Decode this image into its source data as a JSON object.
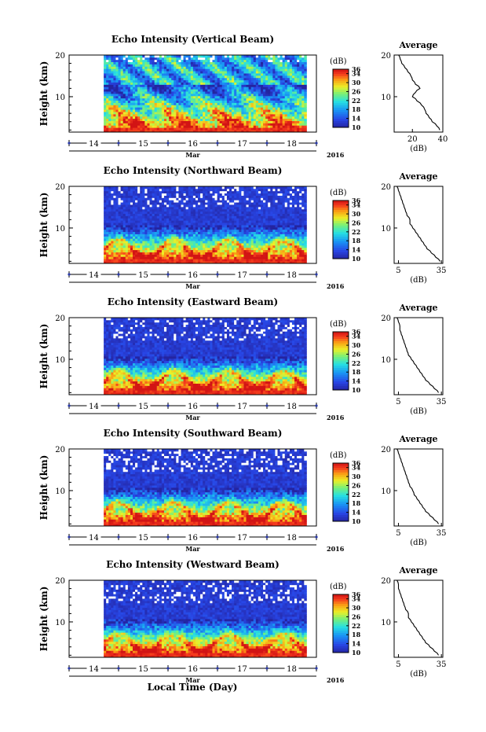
{
  "figure": {
    "x_axis_label": "Local Time (Day)",
    "month_label": "Mar",
    "year_label": "2016"
  },
  "chart_data": [
    {
      "type": "heatmap",
      "title": "Echo Intensity (Vertical Beam)",
      "ylabel": "Height (km)",
      "ylim": [
        1.5,
        20
      ],
      "yticks": [
        10,
        20
      ],
      "xlim": [
        13.5,
        18.5
      ],
      "xticks": [
        "14",
        "15",
        "16",
        "17",
        "18"
      ],
      "data_start_day": 14.2,
      "colorbar": {
        "unit": "(dB)",
        "range": [
          10,
          36
        ],
        "ticks": [
          10,
          14,
          18,
          22,
          26,
          30,
          34,
          36
        ]
      },
      "average_profile": {
        "title": "Average",
        "xlabel": "(dB)",
        "xlim": [
          8,
          40
        ],
        "xticks": [
          20,
          40
        ],
        "ylim": [
          1.5,
          20
        ],
        "yticks": [
          10,
          20
        ],
        "height_km": [
          2,
          3,
          4,
          5,
          6,
          7,
          8,
          9,
          10,
          11,
          12,
          13,
          14,
          15,
          16,
          17,
          18,
          19,
          20
        ],
        "db": [
          38,
          36,
          33,
          31,
          29,
          28,
          26,
          23,
          20,
          22,
          25,
          22,
          20,
          19,
          17,
          15,
          13,
          12,
          11
        ]
      }
    },
    {
      "type": "heatmap",
      "title": "Echo Intensity (Northward Beam)",
      "ylabel": "Height (km)",
      "ylim": [
        1.5,
        20
      ],
      "yticks": [
        10,
        20
      ],
      "xlim": [
        13.5,
        18.5
      ],
      "xticks": [
        "14",
        "15",
        "16",
        "17",
        "18"
      ],
      "data_start_day": 14.2,
      "colorbar": {
        "unit": "(dB)",
        "range": [
          10,
          36
        ],
        "ticks": [
          10,
          14,
          18,
          22,
          26,
          30,
          34,
          36
        ]
      },
      "average_profile": {
        "title": "Average",
        "xlabel": "(dB)",
        "xlim": [
          2,
          36
        ],
        "xticks": [
          5,
          35
        ],
        "ylim": [
          1.5,
          20
        ],
        "yticks": [
          10,
          20
        ],
        "height_km": [
          2,
          3,
          4,
          5,
          6,
          7,
          8,
          9,
          10,
          11,
          12,
          13,
          14,
          15,
          16,
          17,
          18,
          19,
          20
        ],
        "db": [
          34,
          31,
          28,
          25,
          23,
          21,
          19,
          17,
          15,
          13,
          13,
          11,
          10,
          9,
          8,
          7,
          6,
          5,
          4
        ]
      }
    },
    {
      "type": "heatmap",
      "title": "Echo Intensity (Eastward Beam)",
      "ylabel": "Height (km)",
      "ylim": [
        1.5,
        20
      ],
      "yticks": [
        10,
        20
      ],
      "xlim": [
        13.5,
        18.5
      ],
      "xticks": [
        "14",
        "15",
        "16",
        "17",
        "18"
      ],
      "data_start_day": 14.2,
      "colorbar": {
        "unit": "(dB)",
        "range": [
          10,
          36
        ],
        "ticks": [
          10,
          14,
          18,
          22,
          26,
          30,
          34,
          36
        ]
      },
      "average_profile": {
        "title": "Average",
        "xlabel": "(dB)",
        "xlim": [
          2,
          36
        ],
        "xticks": [
          5,
          35
        ],
        "ylim": [
          1.5,
          20
        ],
        "yticks": [
          10,
          20
        ],
        "height_km": [
          2,
          3,
          4,
          5,
          6,
          7,
          8,
          9,
          10,
          11,
          12,
          13,
          14,
          15,
          16,
          17,
          18,
          19,
          20
        ],
        "db": [
          33,
          30,
          27,
          24,
          22,
          20,
          18,
          16,
          14,
          12,
          11,
          10,
          9,
          8,
          7,
          6,
          6,
          5,
          4
        ]
      }
    },
    {
      "type": "heatmap",
      "title": "Echo Intensity (Southward Beam)",
      "ylabel": "Height (km)",
      "ylim": [
        1.5,
        20
      ],
      "yticks": [
        10,
        20
      ],
      "xlim": [
        13.5,
        18.5
      ],
      "xticks": [
        "14",
        "15",
        "16",
        "17",
        "18"
      ],
      "data_start_day": 14.2,
      "colorbar": {
        "unit": "(dB)",
        "range": [
          10,
          36
        ],
        "ticks": [
          10,
          14,
          18,
          22,
          26,
          30,
          34,
          36
        ]
      },
      "average_profile": {
        "title": "Average",
        "xlabel": "(dB)",
        "xlim": [
          2,
          36
        ],
        "xticks": [
          5,
          35
        ],
        "ylim": [
          1.5,
          20
        ],
        "yticks": [
          10,
          20
        ],
        "height_km": [
          2,
          3,
          4,
          5,
          6,
          7,
          8,
          9,
          10,
          11,
          12,
          13,
          14,
          15,
          16,
          17,
          18,
          19,
          20
        ],
        "db": [
          33,
          30,
          27,
          24,
          22,
          20,
          18,
          16,
          15,
          13,
          12,
          11,
          10,
          9,
          8,
          7,
          6,
          5,
          4
        ]
      }
    },
    {
      "type": "heatmap",
      "title": "Echo Intensity (Westward Beam)",
      "ylabel": "Height (km)",
      "ylim": [
        1.5,
        20
      ],
      "yticks": [
        10,
        20
      ],
      "xlim": [
        13.5,
        18.5
      ],
      "xticks": [
        "14",
        "15",
        "16",
        "17",
        "18"
      ],
      "data_start_day": 14.2,
      "colorbar": {
        "unit": "(dB)",
        "range": [
          10,
          36
        ],
        "ticks": [
          10,
          14,
          18,
          22,
          26,
          30,
          34,
          36
        ]
      },
      "average_profile": {
        "title": "Average",
        "xlabel": "(dB)",
        "xlim": [
          2,
          36
        ],
        "xticks": [
          5,
          35
        ],
        "ylim": [
          1.5,
          20
        ],
        "yticks": [
          10,
          20
        ],
        "height_km": [
          2,
          3,
          4,
          5,
          6,
          7,
          8,
          9,
          10,
          11,
          12,
          13,
          14,
          15,
          16,
          17,
          18,
          19,
          20
        ],
        "db": [
          33,
          30,
          27,
          24,
          22,
          20,
          18,
          16,
          14,
          12,
          12,
          10,
          9,
          8,
          7,
          6,
          5,
          5,
          4
        ]
      }
    }
  ]
}
